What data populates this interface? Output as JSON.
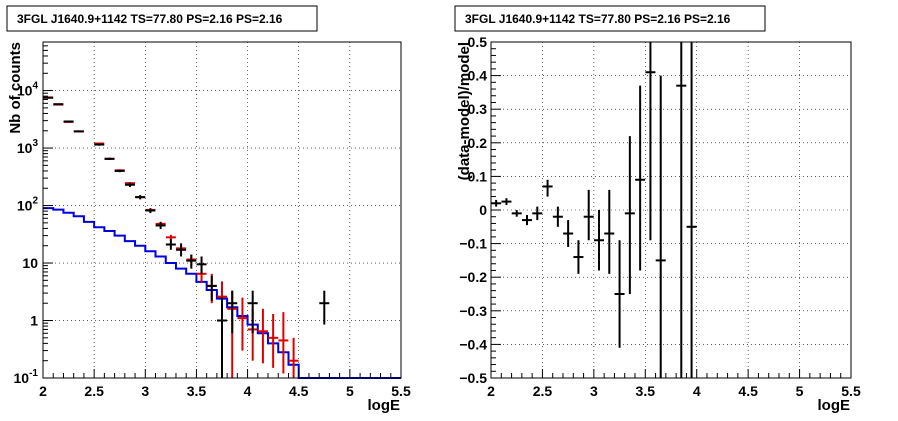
{
  "chart_data": [
    {
      "type": "line",
      "title": "3FGL J1640.9+1142 TS=77.80 PS=2.16 PS=2.16",
      "xlabel": "logE",
      "ylabel": "Nb of counts",
      "xlim": [
        2,
        5.5
      ],
      "ylim": [
        0.1,
        70000
      ],
      "log_y": true,
      "grid": true,
      "x_ticks": [
        "2",
        "2.5",
        "3",
        "3.5",
        "4",
        "4.5",
        "5",
        "5.5"
      ],
      "y_ticks": [
        {
          "value": 0.1,
          "base": "10",
          "exp": "-1"
        },
        {
          "value": 1,
          "base": "1",
          "exp": ""
        },
        {
          "value": 10,
          "base": "10",
          "exp": ""
        },
        {
          "value": 100,
          "base": "10",
          "exp": "2"
        },
        {
          "value": 1000,
          "base": "10",
          "exp": "3"
        },
        {
          "value": 10000,
          "base": "10",
          "exp": "4"
        }
      ],
      "colors": {
        "data": "#000000",
        "model": "#dd0000",
        "background": "#0000dd"
      },
      "series": [
        {
          "kind": "data",
          "color": "#000000",
          "points": [
            {
              "x": 2.05,
              "y": 7500,
              "lo": 7300,
              "hi": 7700
            },
            {
              "x": 2.15,
              "y": 5800,
              "lo": 5650,
              "hi": 5950
            },
            {
              "x": 2.25,
              "y": 2900,
              "lo": 2800,
              "hi": 3000
            },
            {
              "x": 2.35,
              "y": 1950,
              "lo": 1870,
              "hi": 2030
            },
            {
              "x": 2.55,
              "y": 1150,
              "lo": 1100,
              "hi": 1200
            },
            {
              "x": 2.65,
              "y": 650,
              "lo": 620,
              "hi": 680
            },
            {
              "x": 2.75,
              "y": 400,
              "lo": 380,
              "hi": 420
            },
            {
              "x": 2.85,
              "y": 230,
              "lo": 210,
              "hi": 250
            },
            {
              "x": 2.95,
              "y": 140,
              "lo": 128,
              "hi": 152
            },
            {
              "x": 3.05,
              "y": 82,
              "lo": 74,
              "hi": 90
            },
            {
              "x": 3.15,
              "y": 45,
              "lo": 39,
              "hi": 52
            },
            {
              "x": 3.25,
              "y": 21,
              "lo": 17,
              "hi": 26
            },
            {
              "x": 3.35,
              "y": 17,
              "lo": 13,
              "hi": 22
            },
            {
              "x": 3.45,
              "y": 11,
              "lo": 8,
              "hi": 14
            },
            {
              "x": 3.55,
              "y": 9.5,
              "lo": 6.5,
              "hi": 13
            },
            {
              "x": 3.65,
              "y": 4,
              "lo": 2.2,
              "hi": 6
            },
            {
              "x": 3.75,
              "y": 1,
              "lo": 0.1,
              "hi": 2.5
            },
            {
              "x": 3.85,
              "y": 2,
              "lo": 0.6,
              "hi": 3.3
            },
            {
              "x": 4.05,
              "y": 2,
              "lo": 0.6,
              "hi": 3.3
            },
            {
              "x": 4.75,
              "y": 2,
              "lo": 0.85,
              "hi": 3.3
            }
          ]
        },
        {
          "kind": "model",
          "color": "#dd0000",
          "points": [
            {
              "x": 2.05,
              "y": 7600,
              "lo": 7450,
              "hi": 7750
            },
            {
              "x": 2.15,
              "y": 5700,
              "lo": 5570,
              "hi": 5830
            },
            {
              "x": 2.25,
              "y": 2850,
              "lo": 2770,
              "hi": 2930
            },
            {
              "x": 2.35,
              "y": 1950,
              "lo": 1890,
              "hi": 2010
            },
            {
              "x": 2.55,
              "y": 1200,
              "lo": 1160,
              "hi": 1240
            },
            {
              "x": 2.65,
              "y": 650,
              "lo": 625,
              "hi": 675
            },
            {
              "x": 2.75,
              "y": 410,
              "lo": 395,
              "hi": 425
            },
            {
              "x": 2.85,
              "y": 245,
              "lo": 235,
              "hi": 255
            },
            {
              "x": 2.95,
              "y": 140,
              "lo": 133,
              "hi": 147
            },
            {
              "x": 3.05,
              "y": 84,
              "lo": 79,
              "hi": 89
            },
            {
              "x": 3.15,
              "y": 48,
              "lo": 44,
              "hi": 52
            },
            {
              "x": 3.25,
              "y": 28,
              "lo": 25,
              "hi": 31
            },
            {
              "x": 3.35,
              "y": 18,
              "lo": 16,
              "hi": 20.5
            },
            {
              "x": 3.45,
              "y": 11.5,
              "lo": 9,
              "hi": 14
            },
            {
              "x": 3.55,
              "y": 6.5,
              "lo": 4.5,
              "hi": 9
            },
            {
              "x": 3.65,
              "y": 4,
              "lo": 2,
              "hi": 6.5
            },
            {
              "x": 3.75,
              "y": 2.6,
              "lo": 1.2,
              "hi": 4.8
            },
            {
              "x": 3.85,
              "y": 1.6,
              "lo": 0.1,
              "hi": 3.3
            },
            {
              "x": 3.95,
              "y": 1.1,
              "lo": 0.3,
              "hi": 2.5
            },
            {
              "x": 4.05,
              "y": 0.7,
              "lo": 0.2,
              "hi": 1.6
            },
            {
              "x": 4.15,
              "y": 0.65,
              "lo": 0.18,
              "hi": 1.6
            },
            {
              "x": 4.25,
              "y": 0.5,
              "lo": 0.15,
              "hi": 1.3
            },
            {
              "x": 4.35,
              "y": 0.45,
              "lo": 0.12,
              "hi": 1.4
            },
            {
              "x": 4.45,
              "y": 0.2,
              "lo": 0.1,
              "hi": 0.5
            }
          ]
        },
        {
          "kind": "background",
          "color": "#0000dd",
          "step": true,
          "edges": [
            2.0,
            2.1,
            2.2,
            2.3,
            2.4,
            2.5,
            2.6,
            2.7,
            2.8,
            2.9,
            3.0,
            3.1,
            3.2,
            3.3,
            3.4,
            3.5,
            3.6,
            3.7,
            3.8,
            3.9,
            4.0,
            4.1,
            4.2,
            4.3,
            4.4,
            4.5,
            5.5
          ],
          "values": [
            90,
            85,
            75,
            65,
            52,
            42,
            36,
            30,
            24,
            20,
            16,
            13,
            10,
            8,
            6.5,
            4.7,
            3.4,
            2.4,
            1.7,
            1.2,
            0.85,
            0.6,
            0.4,
            0.28,
            0.17,
            0.1
          ]
        }
      ]
    },
    {
      "type": "scatter",
      "title": "3FGL J1640.9+1142 TS=77.80 PS=2.16 PS=2.16",
      "xlabel": "logE",
      "ylabel": "(data-model)/model",
      "xlim": [
        2,
        5.5
      ],
      "ylim": [
        -0.5,
        0.5
      ],
      "grid": true,
      "x_ticks": [
        "2",
        "2.5",
        "3",
        "3.5",
        "4",
        "4.5",
        "5",
        "5.5"
      ],
      "y_ticks": [
        "−0.5",
        "−0.4",
        "−0.3",
        "−0.2",
        "−0.1",
        "0",
        "0.1",
        "0.2",
        "0.3",
        "0.4",
        "0.5"
      ],
      "color": "#000000",
      "points": [
        {
          "x": 2.05,
          "y": 0.02,
          "lo": 0.01,
          "hi": 0.03
        },
        {
          "x": 2.15,
          "y": 0.025,
          "lo": 0.015,
          "hi": 0.035
        },
        {
          "x": 2.25,
          "y": -0.01,
          "lo": -0.02,
          "hi": 0.0
        },
        {
          "x": 2.35,
          "y": -0.03,
          "lo": -0.045,
          "hi": -0.015
        },
        {
          "x": 2.45,
          "y": -0.01,
          "lo": -0.03,
          "hi": 0.01
        },
        {
          "x": 2.55,
          "y": 0.07,
          "lo": 0.04,
          "hi": 0.09
        },
        {
          "x": 2.65,
          "y": -0.02,
          "lo": -0.05,
          "hi": 0.01
        },
        {
          "x": 2.75,
          "y": -0.07,
          "lo": -0.11,
          "hi": -0.03
        },
        {
          "x": 2.85,
          "y": -0.14,
          "lo": -0.19,
          "hi": -0.09
        },
        {
          "x": 2.95,
          "y": -0.02,
          "lo": -0.09,
          "hi": 0.06
        },
        {
          "x": 3.05,
          "y": -0.09,
          "lo": -0.18,
          "hi": 0.0
        },
        {
          "x": 3.15,
          "y": -0.07,
          "lo": -0.19,
          "hi": 0.06
        },
        {
          "x": 3.25,
          "y": -0.25,
          "lo": -0.41,
          "hi": -0.09
        },
        {
          "x": 3.35,
          "y": -0.01,
          "lo": -0.25,
          "hi": 0.22
        },
        {
          "x": 3.45,
          "y": 0.09,
          "lo": -0.18,
          "hi": 0.37
        },
        {
          "x": 3.55,
          "y": 0.41,
          "lo": -0.09,
          "hi": 0.5
        },
        {
          "x": 3.65,
          "y": -0.15,
          "lo": -0.5,
          "hi": 0.4
        },
        {
          "x": 3.85,
          "y": 0.37,
          "lo": -0.5,
          "hi": 0.5
        },
        {
          "x": 3.95,
          "y": -0.05,
          "lo": -0.5,
          "hi": 0.5
        }
      ]
    }
  ]
}
